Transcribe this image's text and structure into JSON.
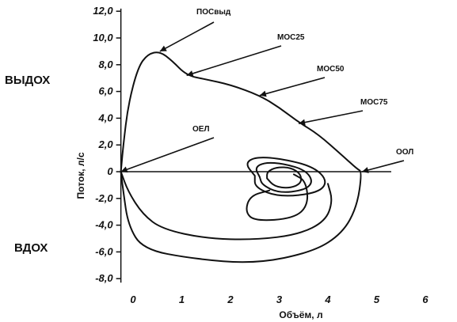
{
  "chart_data": {
    "type": "line",
    "title": "",
    "xlabel": "Объём, л",
    "ylabel": "Поток, л/с",
    "xlim": [
      -0.3,
      6.2
    ],
    "ylim": [
      -8.4,
      12.4
    ],
    "xticks": [
      "0",
      "1",
      "2",
      "3",
      "4",
      "5",
      "6"
    ],
    "yticks": [
      "12,0",
      "10,0",
      "8,0",
      "6,0",
      "4,0",
      "2,0",
      "0",
      "-2,0",
      "-4,0",
      "-6,0",
      "-8,0"
    ],
    "side_labels": {
      "exhale": "ВЫДОХ",
      "inhale": "ВДОХ"
    },
    "series": [
      {
        "points": [
          [
            -0.25,
            0
          ],
          [
            -0.2,
            2
          ],
          [
            -0.1,
            5
          ],
          [
            0.1,
            7.8
          ],
          [
            0.3,
            8.8
          ],
          [
            0.55,
            9
          ],
          [
            0.8,
            8.3
          ],
          [
            1.1,
            7.2
          ],
          [
            1.5,
            6.9
          ],
          [
            2.0,
            6.5
          ],
          [
            2.6,
            5.7
          ],
          [
            3.0,
            4.8
          ],
          [
            3.4,
            3.7
          ],
          [
            3.8,
            2.8
          ],
          [
            4.3,
            1.2
          ],
          [
            4.6,
            0.2
          ],
          [
            4.7,
            0
          ],
          [
            4.6,
            -2.6
          ],
          [
            4.3,
            -4.6
          ],
          [
            3.7,
            -6.0
          ],
          [
            2.5,
            -6.9
          ],
          [
            1.2,
            -6.5
          ],
          [
            0.2,
            -5.8
          ],
          [
            -0.1,
            -4.0
          ],
          [
            -0.2,
            -1.5
          ],
          [
            -0.25,
            0
          ]
        ]
      },
      {
        "points": [
          [
            -0.25,
            0
          ],
          [
            -0.1,
            -1.5
          ],
          [
            0.2,
            -3.2
          ],
          [
            0.6,
            -4.3
          ],
          [
            1.5,
            -5.0
          ],
          [
            2.5,
            -5.1
          ],
          [
            3.4,
            -4.7
          ],
          [
            3.95,
            -3.7
          ],
          [
            4.1,
            -2.2
          ],
          [
            4.0,
            -0.9
          ]
        ]
      },
      {
        "points": [
          [
            2.5,
            -0.3
          ],
          [
            2.3,
            0.6
          ],
          [
            2.5,
            1.1
          ],
          [
            3.0,
            1.0
          ],
          [
            3.7,
            0.4
          ],
          [
            4.0,
            -0.7
          ],
          [
            3.8,
            -1.6
          ],
          [
            3.0,
            -1.9
          ],
          [
            2.5,
            -1.2
          ],
          [
            2.5,
            -0.3
          ]
        ]
      },
      {
        "points": [
          [
            2.6,
            -0.4
          ],
          [
            2.5,
            0.3
          ],
          [
            2.7,
            0.7
          ],
          [
            3.1,
            0.6
          ],
          [
            3.55,
            0.1
          ],
          [
            3.7,
            -0.8
          ],
          [
            3.5,
            -1.4
          ],
          [
            3.0,
            -1.6
          ],
          [
            2.65,
            -1.0
          ],
          [
            2.6,
            -0.4
          ]
        ]
      },
      {
        "points": [
          [
            2.75,
            -0.5
          ],
          [
            2.75,
            0
          ],
          [
            2.95,
            0.35
          ],
          [
            3.25,
            0.3
          ],
          [
            3.45,
            -0.2
          ],
          [
            3.45,
            -0.9
          ],
          [
            3.2,
            -1.25
          ],
          [
            2.9,
            -1.1
          ],
          [
            2.75,
            -0.5
          ]
        ]
      },
      {
        "points": [
          [
            3.3,
            -0.2
          ],
          [
            3.55,
            -0.7
          ],
          [
            3.6,
            -2.5
          ],
          [
            3.3,
            -3.5
          ],
          [
            2.5,
            -3.7
          ],
          [
            2.3,
            -3.0
          ],
          [
            2.4,
            -1.8
          ],
          [
            2.8,
            -1.4
          ]
        ]
      }
    ],
    "annotations": [
      {
        "label": "ПОСвыд",
        "x": 0.55,
        "y": 9.0
      },
      {
        "label": "МОС25",
        "x": 1.1,
        "y": 7.2
      },
      {
        "label": "МОС50",
        "x": 2.6,
        "y": 5.7
      },
      {
        "label": "МОС75",
        "x": 3.4,
        "y": 3.6
      },
      {
        "label": "ООЛ",
        "x": 4.7,
        "y": 0
      },
      {
        "label": "ОЕЛ",
        "x": -0.25,
        "y": 0
      }
    ]
  }
}
